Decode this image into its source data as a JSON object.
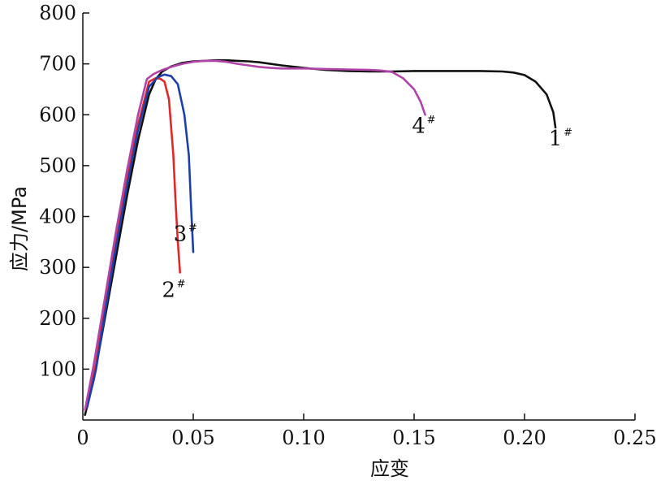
{
  "chart_data": {
    "type": "line",
    "xlabel": "应变",
    "ylabel": "应力/MPa",
    "xlim": [
      0,
      0.25
    ],
    "ylim": [
      0,
      800
    ],
    "x_ticks": [
      0,
      0.05,
      0.1,
      0.15,
      0.2,
      0.25
    ],
    "x_tick_labels": [
      "0",
      "0.05",
      "0.10",
      "0.15",
      "0.20",
      "0.25"
    ],
    "y_ticks": [
      100,
      200,
      300,
      400,
      500,
      600,
      700,
      800
    ],
    "y_tick_labels": [
      "100",
      "200",
      "300",
      "400",
      "500",
      "600",
      "700",
      "800"
    ],
    "grid": false,
    "series": [
      {
        "name": "1#",
        "label_main": "1",
        "label_sup": "#",
        "color": "#111111",
        "x": [
          0.001,
          0.005,
          0.01,
          0.015,
          0.02,
          0.025,
          0.03,
          0.033,
          0.036,
          0.04,
          0.045,
          0.05,
          0.055,
          0.06,
          0.065,
          0.07,
          0.075,
          0.08,
          0.09,
          0.1,
          0.11,
          0.12,
          0.13,
          0.14,
          0.15,
          0.16,
          0.17,
          0.18,
          0.19,
          0.195,
          0.2,
          0.205,
          0.21,
          0.213,
          0.214
        ],
        "y": [
          10,
          80,
          200,
          320,
          440,
          550,
          640,
          670,
          685,
          695,
          702,
          705,
          706,
          707,
          707,
          706,
          705,
          703,
          697,
          692,
          688,
          686,
          685,
          685,
          686,
          686,
          686,
          686,
          685,
          683,
          678,
          665,
          640,
          605,
          575
        ]
      },
      {
        "name": "2#",
        "label_main": "2",
        "label_sup": "#",
        "color": "#e02828",
        "x": [
          0.002,
          0.006,
          0.01,
          0.015,
          0.02,
          0.025,
          0.03,
          0.033,
          0.035,
          0.037,
          0.039,
          0.041,
          0.042,
          0.043,
          0.044
        ],
        "y": [
          30,
          110,
          220,
          350,
          470,
          580,
          665,
          672,
          671,
          665,
          630,
          520,
          430,
          350,
          290
        ]
      },
      {
        "name": "3#",
        "label_main": "3",
        "label_sup": "#",
        "color": "#1f3fa8",
        "x": [
          0.002,
          0.006,
          0.01,
          0.015,
          0.02,
          0.025,
          0.03,
          0.034,
          0.037,
          0.04,
          0.043,
          0.046,
          0.048,
          0.049,
          0.05
        ],
        "y": [
          25,
          100,
          210,
          340,
          460,
          570,
          655,
          674,
          679,
          676,
          660,
          600,
          520,
          420,
          330
        ]
      },
      {
        "name": "4#",
        "label_main": "4",
        "label_sup": "#",
        "color": "#b044a8",
        "x": [
          0.001,
          0.005,
          0.01,
          0.015,
          0.02,
          0.025,
          0.029,
          0.032,
          0.036,
          0.04,
          0.045,
          0.05,
          0.055,
          0.06,
          0.065,
          0.07,
          0.075,
          0.08,
          0.085,
          0.09,
          0.1,
          0.11,
          0.12,
          0.13,
          0.135,
          0.14,
          0.145,
          0.15,
          0.153,
          0.155
        ],
        "y": [
          20,
          110,
          240,
          370,
          490,
          600,
          670,
          680,
          688,
          694,
          700,
          704,
          706,
          706,
          704,
          700,
          697,
          694,
          692,
          691,
          691,
          690,
          689,
          688,
          687,
          684,
          672,
          650,
          625,
          600
        ]
      }
    ]
  }
}
